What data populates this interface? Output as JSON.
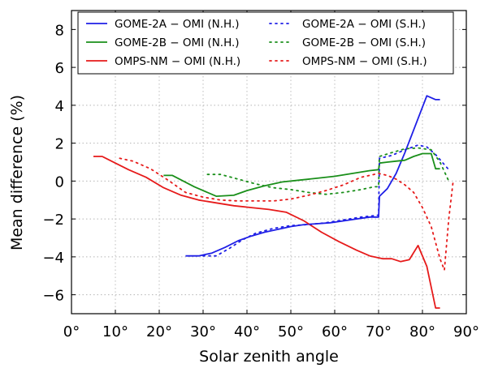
{
  "chart_data": {
    "type": "line",
    "title": "",
    "xlabel": "Solar zenith angle",
    "ylabel": "Mean difference   (%)",
    "xlim": [
      0,
      90
    ],
    "ylim": [
      -7,
      9
    ],
    "x_ticks": [
      0,
      10,
      20,
      30,
      40,
      50,
      60,
      70,
      80,
      90
    ],
    "x_tick_labels": [
      "0°",
      "10°",
      "20°",
      "30°",
      "40°",
      "50°",
      "60°",
      "70°",
      "80°",
      "90°"
    ],
    "y_ticks": [
      -6,
      -4,
      -2,
      0,
      2,
      4,
      6,
      8
    ],
    "y_tick_labels": [
      "−6",
      "−4",
      "−2",
      "0",
      "2",
      "4",
      "6",
      "8"
    ],
    "grid": true,
    "legend_position": "top",
    "series": [
      {
        "name": "GOME-2A − OMI (N.H.)",
        "color": "#1f1fe6",
        "style": "solid",
        "x": [
          26,
          29,
          32,
          35,
          38,
          41,
          44,
          47,
          50,
          53,
          56,
          59,
          62,
          65,
          68,
          70,
          70.2,
          72,
          74,
          76,
          78,
          80,
          81,
          83,
          84
        ],
        "y": [
          -3.95,
          -3.95,
          -3.8,
          -3.5,
          -3.15,
          -2.9,
          -2.7,
          -2.55,
          -2.4,
          -2.3,
          -2.25,
          -2.2,
          -2.1,
          -2.0,
          -1.9,
          -1.9,
          -0.8,
          -0.4,
          0.4,
          1.5,
          2.7,
          3.9,
          4.5,
          4.3,
          4.3
        ]
      },
      {
        "name": "GOME-2B − OMI (N.H.)",
        "color": "#1a8f1a",
        "style": "solid",
        "x": [
          21,
          23,
          28,
          33,
          37,
          40,
          44,
          48,
          52,
          56,
          60,
          64,
          68,
          70,
          70.2,
          72,
          74,
          76,
          78,
          80,
          82,
          83,
          84
        ],
        "y": [
          0.3,
          0.3,
          -0.3,
          -0.8,
          -0.75,
          -0.5,
          -0.25,
          -0.05,
          0.05,
          0.15,
          0.25,
          0.4,
          0.55,
          0.6,
          0.95,
          1.0,
          1.05,
          1.1,
          1.3,
          1.45,
          1.45,
          0.65,
          0.65
        ]
      },
      {
        "name": "OMPS-NM − OMI (N.H.)",
        "color": "#e61a1a",
        "style": "solid",
        "x": [
          5,
          7,
          10,
          13,
          17,
          21,
          25,
          29,
          33,
          37,
          41,
          45,
          49,
          53,
          57,
          61,
          65,
          68,
          71,
          73,
          75,
          77,
          79,
          81,
          83,
          84
        ],
        "y": [
          1.3,
          1.3,
          0.95,
          0.6,
          0.2,
          -0.35,
          -0.75,
          -1.0,
          -1.15,
          -1.3,
          -1.4,
          -1.5,
          -1.65,
          -2.1,
          -2.7,
          -3.2,
          -3.65,
          -3.95,
          -4.1,
          -4.1,
          -4.25,
          -4.15,
          -3.4,
          -4.5,
          -6.7,
          -6.7
        ]
      },
      {
        "name": "GOME-2A − OMI (S.H.)",
        "color": "#1f1fe6",
        "style": "dotted",
        "x": [
          30,
          33,
          36,
          39,
          42,
          46,
          50,
          54,
          58,
          62,
          66,
          70,
          70.2,
          73,
          76,
          79,
          81,
          83,
          86
        ],
        "y": [
          -3.95,
          -3.95,
          -3.55,
          -3.1,
          -2.75,
          -2.5,
          -2.35,
          -2.3,
          -2.2,
          -2.05,
          -1.9,
          -1.8,
          1.2,
          1.35,
          1.65,
          1.9,
          1.8,
          1.4,
          0.6
        ]
      },
      {
        "name": "GOME-2B − OMI (S.H.)",
        "color": "#1a8f1a",
        "style": "dotted",
        "x": [
          31,
          34,
          38,
          42,
          46,
          50,
          54,
          58,
          62,
          66,
          69,
          70,
          70.2,
          73,
          76,
          79,
          82,
          84,
          86
        ],
        "y": [
          0.35,
          0.35,
          0.1,
          -0.15,
          -0.35,
          -0.45,
          -0.6,
          -0.7,
          -0.6,
          -0.45,
          -0.3,
          -0.3,
          1.3,
          1.5,
          1.7,
          1.75,
          1.65,
          1.0,
          0.0
        ]
      },
      {
        "name": "OMPS-NM − OMI (S.H.)",
        "color": "#e61a1a",
        "style": "dotted",
        "x": [
          11,
          14,
          18,
          22,
          26,
          30,
          34,
          38,
          42,
          46,
          50,
          54,
          58,
          62,
          66,
          70,
          72,
          74,
          76,
          78,
          80,
          82,
          84,
          85,
          86,
          87
        ],
        "y": [
          1.2,
          1.05,
          0.65,
          0.05,
          -0.6,
          -0.85,
          -1.0,
          -1.05,
          -1.05,
          -1.05,
          -0.95,
          -0.75,
          -0.5,
          -0.2,
          0.2,
          0.4,
          0.3,
          0.1,
          -0.2,
          -0.6,
          -1.4,
          -2.4,
          -4.1,
          -4.7,
          -2.0,
          0.0
        ]
      }
    ]
  }
}
